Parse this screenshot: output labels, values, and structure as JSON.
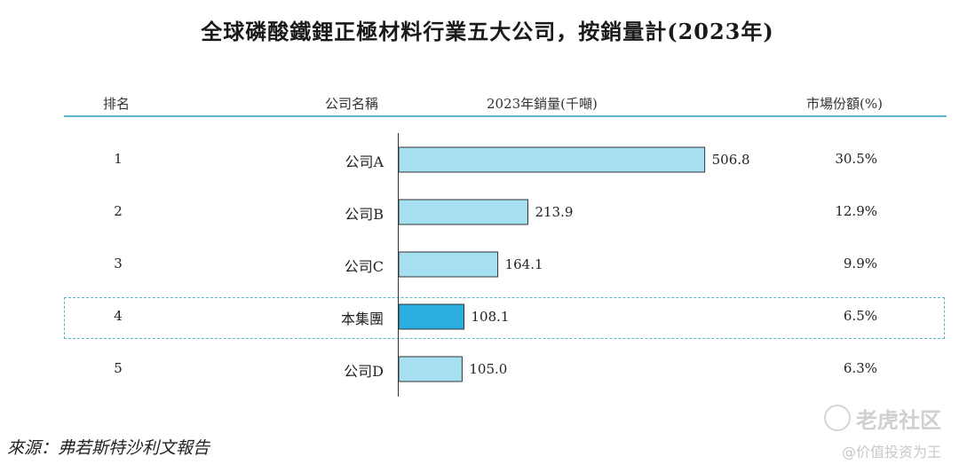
{
  "chart_data": {
    "type": "table",
    "title": "全球磷酸鐵鋰正極材料行業五大公司，按銷量計(2023年)",
    "columns": [
      "排名",
      "公司名稱",
      "2023年銷量(千噸)",
      "市場份額(%)"
    ],
    "rows": [
      {
        "rank": "1",
        "company": "公司A",
        "sales": 506.8,
        "sales_label": "506.8",
        "share": "30.5%",
        "highlight": false
      },
      {
        "rank": "2",
        "company": "公司B",
        "sales": 213.9,
        "sales_label": "213.9",
        "share": "12.9%",
        "highlight": false
      },
      {
        "rank": "3",
        "company": "公司C",
        "sales": 164.1,
        "sales_label": "164.1",
        "share": "9.9%",
        "highlight": false
      },
      {
        "rank": "4",
        "company": "本集團",
        "sales": 108.1,
        "sales_label": "108.1",
        "share": "6.5%",
        "highlight": true
      },
      {
        "rank": "5",
        "company": "公司D",
        "sales": 105.0,
        "sales_label": "105.0",
        "share": "6.3%",
        "highlight": false
      }
    ],
    "bar_type": "bar",
    "bar_orientation": "horizontal",
    "colors": {
      "bar": "#a6dff0",
      "highlight_bar": "#2aaee0",
      "rule": "#5cb6c9"
    }
  },
  "source": "來源：弗若斯特沙利文報告",
  "watermark": {
    "name": "老虎社区",
    "handle": "@价值投资为王"
  }
}
